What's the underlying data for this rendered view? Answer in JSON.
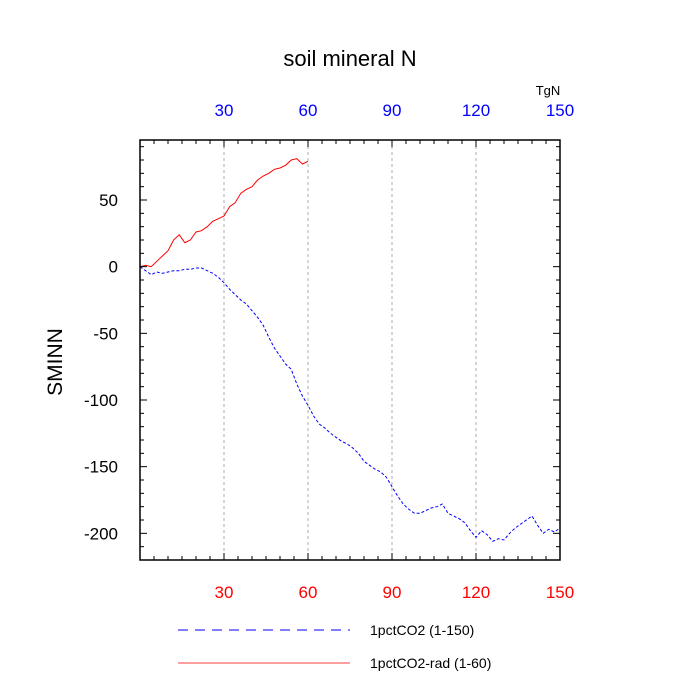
{
  "chart_data": {
    "type": "line",
    "title": "soil mineral N",
    "ylabel": "SMINN",
    "xlabel": "",
    "top_axis_unit": "TgN",
    "xlim": [
      0,
      150
    ],
    "ylim": [
      -220,
      95
    ],
    "x_ticks": [
      30,
      60,
      90,
      120,
      150
    ],
    "y_ticks": [
      50,
      0,
      -50,
      -100,
      -150,
      -200
    ],
    "bottom_tick_color": "#ff0000",
    "top_tick_color": "#0000ff",
    "grid": "vertical dashed at x ticks",
    "legend_position": "bottom",
    "series": [
      {
        "name": "1pctCO2 (1-150)",
        "color": "#0000ff",
        "style": "dashed",
        "x": [
          0,
          2,
          4,
          6,
          8,
          10,
          12,
          14,
          16,
          18,
          20,
          22,
          24,
          26,
          28,
          30,
          32,
          34,
          36,
          38,
          40,
          42,
          44,
          46,
          48,
          50,
          52,
          54,
          56,
          58,
          60,
          62,
          64,
          66,
          68,
          70,
          72,
          74,
          76,
          78,
          80,
          82,
          84,
          86,
          88,
          90,
          92,
          94,
          96,
          98,
          100,
          102,
          104,
          106,
          108,
          110,
          112,
          114,
          116,
          118,
          120,
          122,
          124,
          126,
          128,
          130,
          132,
          134,
          136,
          138,
          140,
          142,
          144,
          146,
          148,
          150
        ],
        "y": [
          0,
          -3,
          -6,
          -4,
          -5,
          -4,
          -3,
          -3,
          -2,
          -2,
          -1,
          -1,
          -3,
          -5,
          -8,
          -12,
          -17,
          -21,
          -25,
          -28,
          -33,
          -38,
          -44,
          -53,
          -61,
          -67,
          -73,
          -77,
          -88,
          -97,
          -104,
          -112,
          -118,
          -121,
          -125,
          -128,
          -131,
          -133,
          -136,
          -140,
          -146,
          -149,
          -152,
          -154,
          -158,
          -165,
          -172,
          -178,
          -182,
          -185,
          -185,
          -183,
          -181,
          -180,
          -178,
          -185,
          -187,
          -189,
          -192,
          -198,
          -203,
          -198,
          -201,
          -206,
          -204,
          -205,
          -200,
          -196,
          -193,
          -190,
          -187,
          -194,
          -200,
          -197,
          -199,
          -196
        ]
      },
      {
        "name": "1pctCO2-rad (1-60)",
        "color": "#ff0000",
        "style": "solid",
        "x": [
          0,
          2,
          4,
          6,
          8,
          10,
          12,
          14,
          16,
          18,
          20,
          22,
          24,
          26,
          28,
          30,
          32,
          34,
          36,
          38,
          40,
          42,
          44,
          46,
          48,
          50,
          52,
          54,
          56,
          58,
          60
        ],
        "y": [
          0,
          1,
          0,
          4,
          8,
          12,
          20,
          24,
          18,
          20,
          26,
          27,
          30,
          34,
          36,
          38,
          45,
          48,
          55,
          58,
          60,
          65,
          68,
          70,
          73,
          74,
          76,
          80,
          81,
          77,
          79
        ]
      }
    ]
  }
}
